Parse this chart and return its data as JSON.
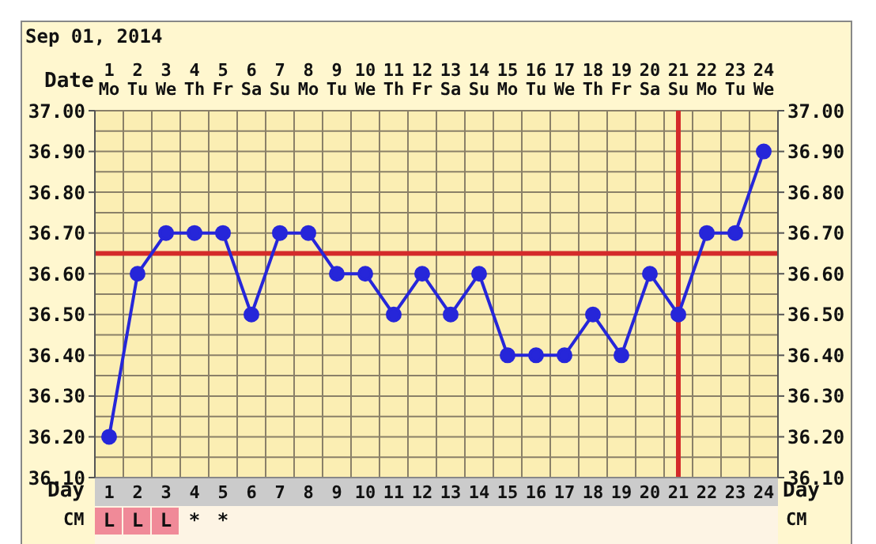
{
  "chart_data": {
    "type": "line",
    "title": "Sep 01, 2014",
    "xlabel": "Day",
    "x2label": "Date",
    "x": [
      1,
      2,
      3,
      4,
      5,
      6,
      7,
      8,
      9,
      10,
      11,
      12,
      13,
      14,
      15,
      16,
      17,
      18,
      19,
      20,
      21,
      22,
      23,
      24
    ],
    "series": [
      {
        "color": "#2626d9",
        "values": [
          36.2,
          36.6,
          36.7,
          36.7,
          36.7,
          36.5,
          36.7,
          36.7,
          36.6,
          36.6,
          36.5,
          36.6,
          36.5,
          36.6,
          36.4,
          36.4,
          36.4,
          36.5,
          36.4,
          36.6,
          36.5,
          36.7,
          36.7,
          36.9
        ]
      }
    ],
    "xlim": [
      0.5,
      24.5
    ],
    "xticks": [
      1,
      2,
      3,
      4,
      5,
      6,
      7,
      8,
      9,
      10,
      11,
      12,
      13,
      14,
      15,
      16,
      17,
      18,
      19,
      20,
      21,
      22,
      23,
      24
    ],
    "x2lim": [
      0.5,
      24.5
    ],
    "x2ticks": [
      1,
      2,
      3,
      4,
      5,
      6,
      7,
      8,
      9,
      10,
      11,
      12,
      13,
      14,
      15,
      16,
      17,
      18,
      19,
      20,
      21,
      22,
      23,
      24
    ],
    "ylim": [
      36.1,
      37.0
    ],
    "yticks": [
      {
        "value": 36.1,
        "label": "36.10"
      },
      {
        "value": 36.2,
        "label": "36.20"
      },
      {
        "value": 36.3,
        "label": "36.30"
      },
      {
        "value": 36.4,
        "label": "36.40"
      },
      {
        "value": 36.5,
        "label": "36.50"
      },
      {
        "value": 36.6,
        "label": "36.60"
      },
      {
        "value": 36.7,
        "label": "36.70"
      },
      {
        "value": 36.8,
        "label": "36.80"
      },
      {
        "value": 36.9,
        "label": "36.90"
      },
      {
        "value": 37.0,
        "label": "37.00"
      }
    ],
    "y2lim": [
      36.1,
      37.0
    ],
    "y2ticks": [
      {
        "value": 36.1,
        "label": "36.10"
      },
      {
        "value": 36.2,
        "label": "36.20"
      },
      {
        "value": 36.3,
        "label": "36.30"
      },
      {
        "value": 36.4,
        "label": "36.40"
      },
      {
        "value": 36.5,
        "label": "36.50"
      },
      {
        "value": 36.6,
        "label": "36.60"
      },
      {
        "value": 36.7,
        "label": "36.70"
      },
      {
        "value": 36.8,
        "label": "36.80"
      },
      {
        "value": 36.9,
        "label": "36.90"
      },
      {
        "value": 37.0,
        "label": "37.00"
      }
    ],
    "ref_lines": [
      {
        "axis": "y",
        "value": 36.65,
        "color": "#d42a2a"
      },
      {
        "axis": "x",
        "value": 21,
        "color": "#d42a2a"
      }
    ],
    "annotations": [
      "CM",
      "L",
      "L",
      "L",
      "*",
      "*",
      "Mo",
      "Tu",
      "We",
      "Th",
      "Fr",
      "Sa",
      "Su",
      "Mo",
      "Tu",
      "We",
      "Th",
      "Fr",
      "Sa",
      "Su",
      "Mo",
      "Tu",
      "We",
      "Th",
      "Fr",
      "Sa",
      "Su",
      "Mo",
      "Tu",
      "We"
    ],
    "grid": true,
    "marker": "circle",
    "line_style": "solid"
  }
}
